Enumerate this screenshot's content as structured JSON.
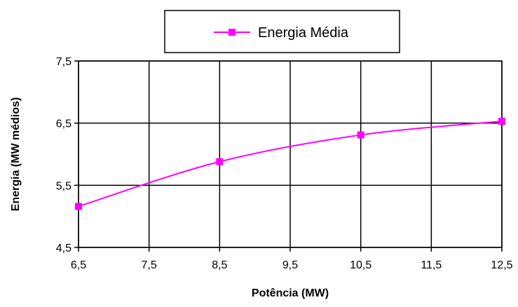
{
  "chart_data": {
    "type": "line",
    "title": "",
    "xlabel": "Potência (MW)",
    "ylabel": "Energia (MW médios)",
    "xlim": [
      6.5,
      12.5
    ],
    "ylim": [
      4.5,
      7.5
    ],
    "x_ticks": [
      6.5,
      7.5,
      8.5,
      9.5,
      10.5,
      11.5,
      12.5
    ],
    "x_tick_labels": [
      "6,5",
      "7,5",
      "8,5",
      "9,5",
      "10,5",
      "11,5",
      "12,5"
    ],
    "y_ticks": [
      4.5,
      5.5,
      6.5,
      7.5
    ],
    "y_tick_labels": [
      "4,5",
      "5,5",
      "6,5",
      "7,5"
    ],
    "grid": true,
    "legend_position": "top-center",
    "series": [
      {
        "name": "Energia Média",
        "color": "#ff00ff",
        "marker": "square",
        "smooth": true,
        "x": [
          6.5,
          8.5,
          10.5,
          12.5
        ],
        "y": [
          5.16,
          5.88,
          6.31,
          6.53
        ]
      }
    ]
  }
}
